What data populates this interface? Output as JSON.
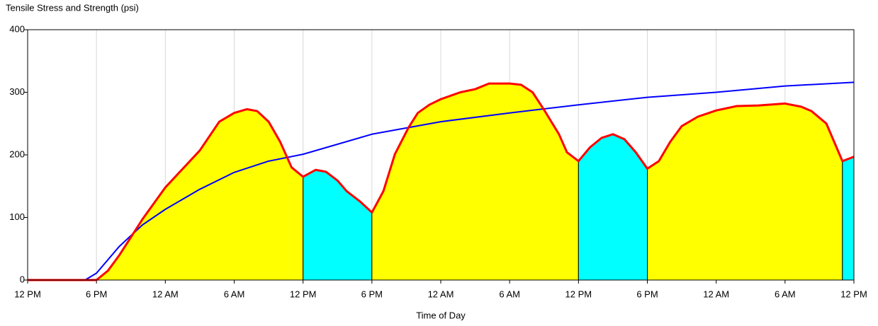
{
  "chart_data": {
    "type": "line",
    "title": "Tensile Stress and Strength (psi)",
    "x_label": "Time of Day",
    "xlim": [
      0,
      72
    ],
    "xticks": [
      {
        "value": 0,
        "label": "12 PM"
      },
      {
        "value": 6,
        "label": "6 PM"
      },
      {
        "value": 12,
        "label": "12 AM"
      },
      {
        "value": 18,
        "label": "6 AM"
      },
      {
        "value": 24,
        "label": "12 PM"
      },
      {
        "value": 30,
        "label": "6 PM"
      },
      {
        "value": 36,
        "label": "12 AM"
      },
      {
        "value": 42,
        "label": "6 AM"
      },
      {
        "value": 48,
        "label": "12 PM"
      },
      {
        "value": 54,
        "label": "6 PM"
      },
      {
        "value": 60,
        "label": "12 AM"
      },
      {
        "value": 66,
        "label": "6 AM"
      },
      {
        "value": 72,
        "label": "12 PM"
      }
    ],
    "ylim": [
      0,
      400
    ],
    "yticks": [
      0,
      100,
      200,
      300,
      400
    ],
    "grid": true,
    "fill_regions": [
      {
        "from": 0,
        "to": 24,
        "color": "#ffff00"
      },
      {
        "from": 24,
        "to": 30,
        "color": "#00ffff"
      },
      {
        "from": 30,
        "to": 48,
        "color": "#ffff00"
      },
      {
        "from": 48,
        "to": 54,
        "color": "#00ffff"
      },
      {
        "from": 54,
        "to": 71,
        "color": "#ffff00"
      },
      {
        "from": 71,
        "to": 72,
        "color": "#00ffff"
      }
    ],
    "series": [
      {
        "color": "#ff0000",
        "fill": true,
        "x": [
          0,
          6,
          7,
          8,
          10,
          12,
          15,
          16.7,
          18,
          19.1,
          20,
          21,
          22,
          23,
          24,
          25.1,
          26,
          27,
          27.8,
          29,
          30,
          31,
          32,
          33.2,
          34,
          35,
          36,
          37.7,
          39,
          40.2,
          42,
          43,
          44,
          45,
          46.3,
          47,
          48,
          49,
          50,
          51,
          52,
          53,
          54,
          55,
          56,
          57,
          58.4,
          60,
          61.8,
          63.7,
          66,
          67.4,
          68.3,
          69.6,
          71,
          72
        ],
        "values": [
          0,
          0,
          15,
          40,
          97,
          148,
          207,
          253,
          267,
          273,
          270,
          253,
          221,
          180,
          165,
          176,
          173,
          159,
          142,
          125,
          108,
          142,
          201,
          244,
          267,
          280,
          289,
          300,
          305,
          314,
          314,
          312,
          300,
          272,
          233,
          204,
          190,
          212,
          227,
          233,
          225,
          204,
          178,
          190,
          221,
          246,
          261,
          271,
          278,
          279,
          282,
          277,
          270,
          250,
          190,
          197
        ]
      },
      {
        "color": "#0000ff",
        "x": [
          0,
          5,
          6,
          8,
          10,
          12,
          15,
          18,
          21,
          24,
          30,
          36,
          42,
          48,
          54,
          60,
          66,
          72
        ],
        "values": [
          0,
          0,
          11,
          54,
          88,
          113,
          145,
          172,
          190,
          201,
          233,
          253,
          267,
          280,
          292,
          300,
          310,
          316
        ]
      }
    ]
  }
}
